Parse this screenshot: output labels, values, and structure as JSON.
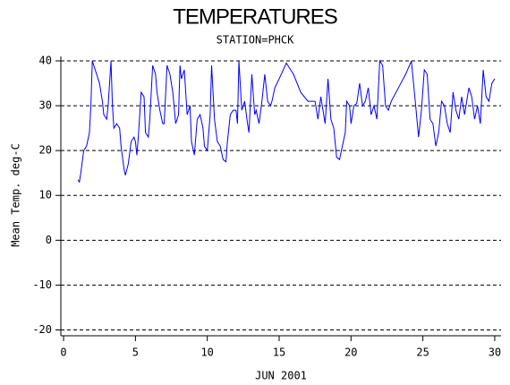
{
  "chart_data": {
    "type": "line",
    "title": "TEMPERATURES",
    "subtitle": "STATION=PHCK",
    "x_label": "JUN 2001",
    "y_label": "Mean Temp. deg-C",
    "x": [
      1.0,
      1.1,
      1.2,
      1.4,
      1.6,
      1.8,
      1.9,
      2.0,
      2.2,
      2.5,
      2.7,
      2.8,
      3.0,
      3.1,
      3.3,
      3.4,
      3.5,
      3.7,
      3.9,
      4.0,
      4.2,
      4.3,
      4.5,
      4.7,
      4.9,
      5.0,
      5.1,
      5.2,
      5.4,
      5.6,
      5.7,
      5.9,
      6.0,
      6.2,
      6.4,
      6.5,
      6.7,
      6.9,
      7.0,
      7.2,
      7.4,
      7.6,
      7.8,
      8.0,
      8.1,
      8.2,
      8.4,
      8.6,
      8.8,
      8.9,
      9.1,
      9.3,
      9.5,
      9.7,
      9.8,
      10.0,
      10.2,
      10.3,
      10.5,
      10.7,
      10.9,
      11.1,
      11.3,
      11.4,
      11.6,
      11.8,
      12.0,
      12.1,
      12.2,
      12.4,
      12.6,
      12.8,
      12.9,
      13.1,
      13.3,
      13.4,
      13.6,
      13.8,
      14.0,
      14.2,
      14.4,
      14.5,
      14.7,
      15.0,
      15.5,
      16.0,
      16.5,
      17.0,
      17.5,
      17.7,
      17.9,
      18.2,
      18.4,
      18.6,
      18.8,
      19.0,
      19.2,
      19.4,
      19.6,
      19.7,
      19.9,
      20.0,
      20.2,
      20.4,
      20.6,
      20.8,
      21.0,
      21.2,
      21.4,
      21.6,
      21.8,
      22.0,
      22.2,
      22.4,
      22.6,
      22.8,
      23.3,
      23.8,
      24.2,
      24.5,
      24.7,
      24.9,
      25.1,
      25.3,
      25.5,
      25.7,
      25.9,
      26.1,
      26.3,
      26.5,
      26.7,
      26.9,
      27.1,
      27.3,
      27.5,
      27.7,
      27.9,
      28.2,
      28.4,
      28.6,
      28.8,
      29.0,
      29.2,
      29.4,
      29.6,
      29.8,
      30.0
    ],
    "series": [
      {
        "color": "#0000ff",
        "values": [
          13.5,
          13,
          15,
          20,
          21,
          24,
          30,
          40,
          38,
          35,
          31,
          28,
          27,
          30,
          40,
          30,
          25,
          26,
          25,
          21,
          16,
          14.5,
          17,
          22,
          23,
          22,
          19,
          23,
          33,
          32,
          24,
          23,
          27,
          39,
          37,
          33,
          29,
          26,
          26,
          39,
          37,
          33,
          26,
          28,
          39,
          36,
          38,
          28,
          30,
          22,
          19,
          27,
          28,
          25,
          21,
          20,
          28,
          39,
          27,
          22,
          21,
          18,
          17.5,
          22,
          28,
          29,
          29,
          26,
          40,
          29,
          31,
          26,
          24,
          37,
          28,
          29,
          26,
          31,
          37,
          31,
          30,
          31,
          34,
          36,
          39.5,
          37,
          33,
          31,
          31,
          27,
          32,
          26,
          36,
          27,
          25,
          18.5,
          18,
          21,
          24,
          31,
          30,
          26,
          30,
          30.5,
          35,
          30,
          31,
          34,
          28,
          30,
          27,
          40,
          39,
          30,
          29,
          31,
          34,
          37,
          40,
          30,
          23,
          29,
          38,
          37,
          27,
          26,
          21,
          24,
          31,
          30,
          26,
          24,
          33,
          29,
          27,
          32,
          28,
          34,
          32,
          27,
          30,
          26,
          38,
          32,
          31,
          35,
          36
        ]
      }
    ],
    "xlim": [
      -0.19,
      30.44
    ],
    "ylim": [
      -21.3,
      41
    ],
    "xticks": [
      0,
      5,
      10,
      15,
      20,
      25,
      30
    ],
    "yticks": [
      -20,
      -10,
      0,
      10,
      20,
      30,
      40
    ],
    "grid": true
  }
}
